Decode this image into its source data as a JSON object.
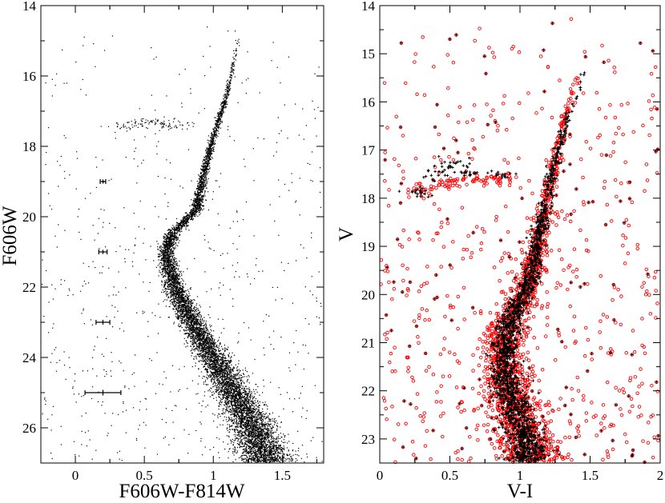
{
  "chart_data": [
    {
      "type": "scatter",
      "xlabel": "F606W-F814W",
      "ylabel": "F606W",
      "xlim": [
        -0.25,
        1.8
      ],
      "ylim": [
        27,
        14
      ],
      "y_inverted": true,
      "xticks": [
        {
          "value": 0,
          "label": "0"
        },
        {
          "value": 0.5,
          "label": "0.5"
        },
        {
          "value": 1,
          "label": "1"
        },
        {
          "value": 1.5,
          "label": "1.5"
        }
      ],
      "yticks": [
        {
          "value": 14,
          "label": "14"
        },
        {
          "value": 16,
          "label": "16"
        },
        {
          "value": 18,
          "label": "18"
        },
        {
          "value": 20,
          "label": "20"
        },
        {
          "value": 22,
          "label": "22"
        },
        {
          "value": 24,
          "label": "24"
        },
        {
          "value": 26,
          "label": "26"
        }
      ],
      "series": [
        {
          "marker": "dot",
          "color": "#000000",
          "values": [
            [
              1.19,
              14.8
            ],
            [
              1.17,
              15.3
            ],
            [
              1.13,
              15.9
            ],
            [
              1.1,
              16.5
            ],
            [
              1.06,
              17.0
            ],
            [
              1.01,
              17.6
            ],
            [
              0.97,
              18.2
            ],
            [
              0.93,
              18.8
            ],
            [
              0.9,
              19.4
            ],
            [
              0.88,
              19.8
            ],
            [
              0.8,
              20.1
            ],
            [
              0.7,
              20.5
            ],
            [
              0.66,
              21.0
            ],
            [
              0.68,
              21.5
            ],
            [
              0.72,
              22.0
            ],
            [
              0.78,
              22.5
            ],
            [
              0.84,
              23.0
            ],
            [
              0.92,
              23.5
            ],
            [
              1.0,
              24.0
            ],
            [
              1.09,
              24.6
            ],
            [
              1.18,
              25.2
            ],
            [
              1.26,
              25.8
            ],
            [
              1.33,
              26.4
            ],
            [
              1.39,
              27.0
            ],
            [
              0.35,
              17.45
            ],
            [
              0.45,
              17.35
            ],
            [
              0.55,
              17.3
            ],
            [
              0.65,
              17.35
            ],
            [
              0.74,
              17.4
            ]
          ]
        }
      ],
      "error_bars": [
        {
          "x": 0.2,
          "y": 19.0,
          "xerr": 0.02,
          "yerr": 0.06
        },
        {
          "x": 0.2,
          "y": 21.0,
          "xerr": 0.03,
          "yerr": 0.06
        },
        {
          "x": 0.2,
          "y": 23.0,
          "xerr": 0.05,
          "yerr": 0.07
        },
        {
          "x": 0.2,
          "y": 25.0,
          "xerr": 0.13,
          "yerr": 0.08
        }
      ]
    },
    {
      "type": "scatter",
      "xlabel": "V-I",
      "ylabel": "V",
      "xlim": [
        0,
        2
      ],
      "ylim": [
        23.5,
        14
      ],
      "y_inverted": true,
      "xticks": [
        {
          "value": 0,
          "label": "0"
        },
        {
          "value": 0.5,
          "label": "0.5"
        },
        {
          "value": 1,
          "label": "1"
        },
        {
          "value": 1.5,
          "label": "1.5"
        },
        {
          "value": 2,
          "label": "2"
        }
      ],
      "yticks": [
        {
          "value": 14,
          "label": "14"
        },
        {
          "value": 15,
          "label": "15"
        },
        {
          "value": 16,
          "label": "16"
        },
        {
          "value": 17,
          "label": "17"
        },
        {
          "value": 18,
          "label": "18"
        },
        {
          "value": 19,
          "label": "19"
        },
        {
          "value": 20,
          "label": "20"
        },
        {
          "value": 21,
          "label": "21"
        },
        {
          "value": 22,
          "label": "22"
        },
        {
          "value": 23,
          "label": "23"
        }
      ],
      "series": [
        {
          "marker": "open-circle",
          "color": "#ff0000",
          "values": [
            [
              1.42,
              15.2
            ],
            [
              1.35,
              16.0
            ],
            [
              1.3,
              16.6
            ],
            [
              1.25,
              17.2
            ],
            [
              1.2,
              17.8
            ],
            [
              1.15,
              18.5
            ],
            [
              1.12,
              19.1
            ],
            [
              1.08,
              19.6
            ],
            [
              1.02,
              20.1
            ],
            [
              0.93,
              20.5
            ],
            [
              0.88,
              21.0
            ],
            [
              0.88,
              21.5
            ],
            [
              0.92,
              22.0
            ],
            [
              0.98,
              22.5
            ],
            [
              1.04,
              23.0
            ],
            [
              1.1,
              23.5
            ],
            [
              0.3,
              17.8
            ],
            [
              0.45,
              17.7
            ],
            [
              0.6,
              17.65
            ],
            [
              0.75,
              17.6
            ],
            [
              0.9,
              17.6
            ]
          ]
        },
        {
          "marker": "plus",
          "color": "#000000",
          "values": [
            [
              1.48,
              15.3
            ],
            [
              1.4,
              15.9
            ],
            [
              1.33,
              16.4
            ],
            [
              1.27,
              17.0
            ],
            [
              1.22,
              17.6
            ],
            [
              1.17,
              18.3
            ],
            [
              1.13,
              18.9
            ],
            [
              1.09,
              19.5
            ],
            [
              1.03,
              20.0
            ],
            [
              0.94,
              20.45
            ],
            [
              0.89,
              21.0
            ],
            [
              0.89,
              21.6
            ],
            [
              0.93,
              22.1
            ],
            [
              0.99,
              22.6
            ],
            [
              1.05,
              23.1
            ],
            [
              0.3,
              17.9
            ],
            [
              0.4,
              17.5
            ],
            [
              0.5,
              17.3
            ],
            [
              0.65,
              17.45
            ],
            [
              0.85,
              17.5
            ]
          ]
        }
      ]
    }
  ]
}
